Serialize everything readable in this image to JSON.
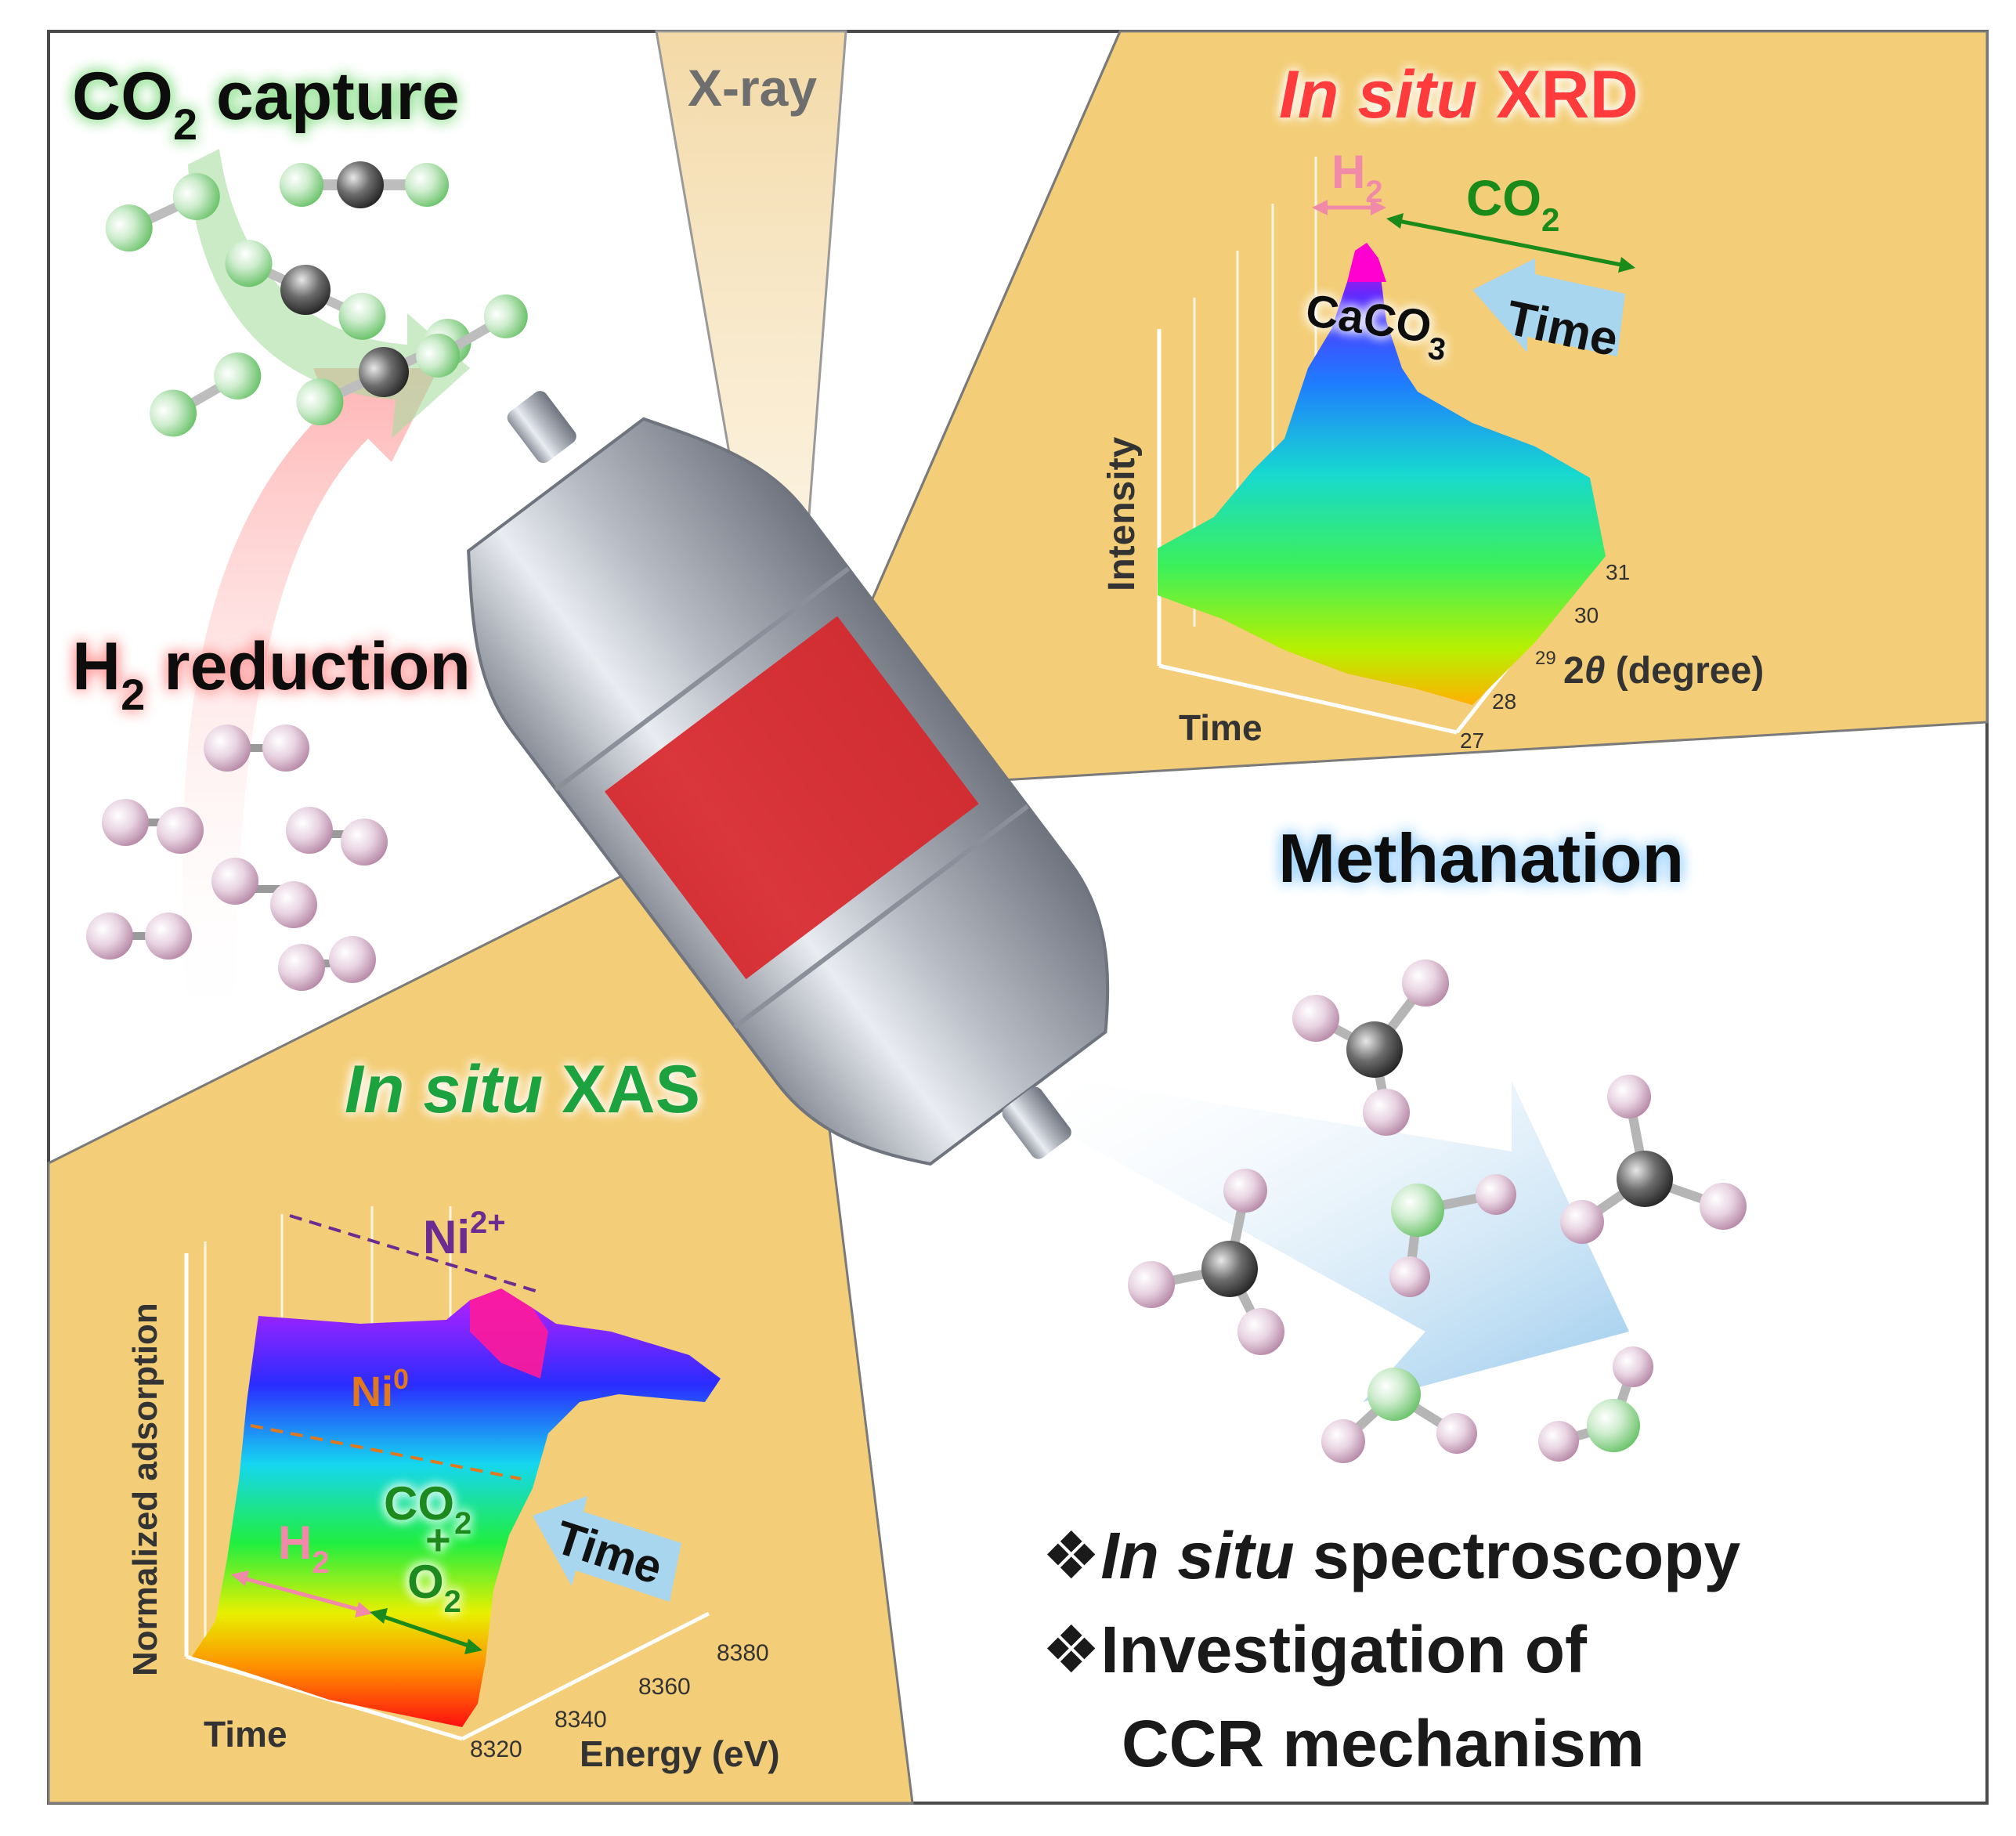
{
  "panels": {
    "co2_capture": {
      "title_main": "CO",
      "title_sub": "2",
      "title_rest": " capture",
      "colors": {
        "title": "#0b0b0b",
        "glow": "#8fe08f",
        "molecule_o": "#7ed27e",
        "molecule_c": "#5a5a5a"
      }
    },
    "xray": {
      "label": "X-ray",
      "colors": {
        "beam": "#f6e2b4",
        "text": "#6e6e6e"
      }
    },
    "xrd": {
      "title_italic": "In situ",
      "title_rest": " XRD",
      "h2_label_main": "H",
      "h2_label_sub": "2",
      "co2_label_main": "CO",
      "co2_label_sub": "2",
      "caco3_main": "CaCO",
      "caco3_sub": "3",
      "time_label": "Time",
      "y_axis_label": "Intensity",
      "x_axis_label": "Time",
      "z_axis_prefix": "2",
      "z_axis_theta": "θ",
      "z_axis_rest": " (degree)",
      "z_ticks": [
        "27",
        "28",
        "29",
        "30",
        "31"
      ],
      "colors": {
        "title": "#ff3b3b",
        "h2": "#f08aa8",
        "co2": "#1a8a1a",
        "panel": "#f3cd77",
        "arrow": "#a9d6ef"
      }
    },
    "h2_reduction": {
      "title_main": "H",
      "title_sub": "2",
      "title_rest": " reduction",
      "colors": {
        "glow": "#ff9a9a",
        "molecule": "#e6c9dc"
      }
    },
    "methanation": {
      "title": "Methanation",
      "colors": {
        "glow": "#9fd4ff",
        "arrow": "#9cccee",
        "h": "#e4c6da",
        "c": "#555555",
        "o": "#9fe09f"
      }
    },
    "xas": {
      "title_italic": "In situ",
      "title_rest": " XAS",
      "ni2_main": "Ni",
      "ni2_sup": "2+",
      "ni0_main": "Ni",
      "ni0_sup": "0",
      "h2_main": "H",
      "h2_sub": "2",
      "co2_main": "CO",
      "co2_sub": "2",
      "plus": "+",
      "o2_main": "O",
      "o2_sub": "2",
      "time_label": "Time",
      "y_axis_label": "Normalized adsorption",
      "x_axis_label": "Time",
      "z_axis_label": "Energy (eV)",
      "z_ticks": [
        "8320",
        "8340",
        "8360",
        "8380"
      ],
      "colors": {
        "title": "#1aa340",
        "ni2": "#6a2c91",
        "ni0": "#e07820",
        "h2": "#f08aa8",
        "co2": "#1a8a1a",
        "panel": "#f3cd77"
      }
    },
    "summary": {
      "bullet": "❖",
      "line1_italic": "In situ",
      "line1_rest": " spectroscopy",
      "line2": "Investigation of",
      "line3": "CCR mechanism"
    }
  },
  "reactor": {
    "colors": {
      "shell": "#c9ccd3",
      "shell_dark": "#8d929c",
      "bed": "#d8262b"
    }
  }
}
